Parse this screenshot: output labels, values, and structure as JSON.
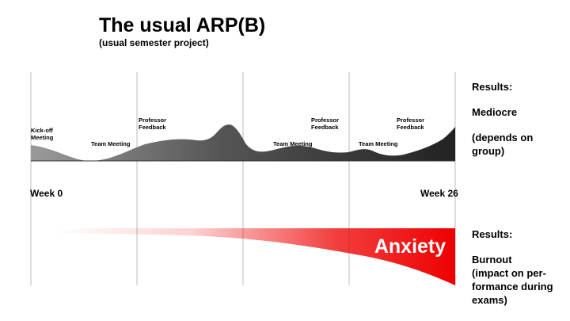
{
  "title": "The usual ARP(B)",
  "subtitle": "(usual semester project)",
  "timeline": {
    "start_label": "Week 0",
    "end_label": "Week 26",
    "start_week": 0,
    "end_week": 26
  },
  "events": [
    {
      "lines": [
        "Kick-off",
        "Meeting"
      ]
    },
    {
      "lines": [
        "Team Meeting"
      ]
    },
    {
      "lines": [
        "Professor",
        "Feedback"
      ]
    },
    {
      "lines": [
        "Professor",
        "Feedback"
      ]
    },
    {
      "lines": [
        "Team Meeting"
      ]
    },
    {
      "lines": [
        "Team Meeting"
      ]
    },
    {
      "lines": [
        "Professor",
        "Feedback"
      ]
    }
  ],
  "anxiety": {
    "label": "Anxiety",
    "color": "#ee0000"
  },
  "workload_color": "#222222",
  "results_top": {
    "heading": "Results:",
    "value": "Mediocre",
    "note_line1": "(depends on",
    "note_line2": "group)"
  },
  "results_bottom": {
    "heading": "Results:",
    "value": "Burnout",
    "note_line1": "(impact on per-",
    "note_line2": "formance during",
    "note_line3": "exams)"
  }
}
